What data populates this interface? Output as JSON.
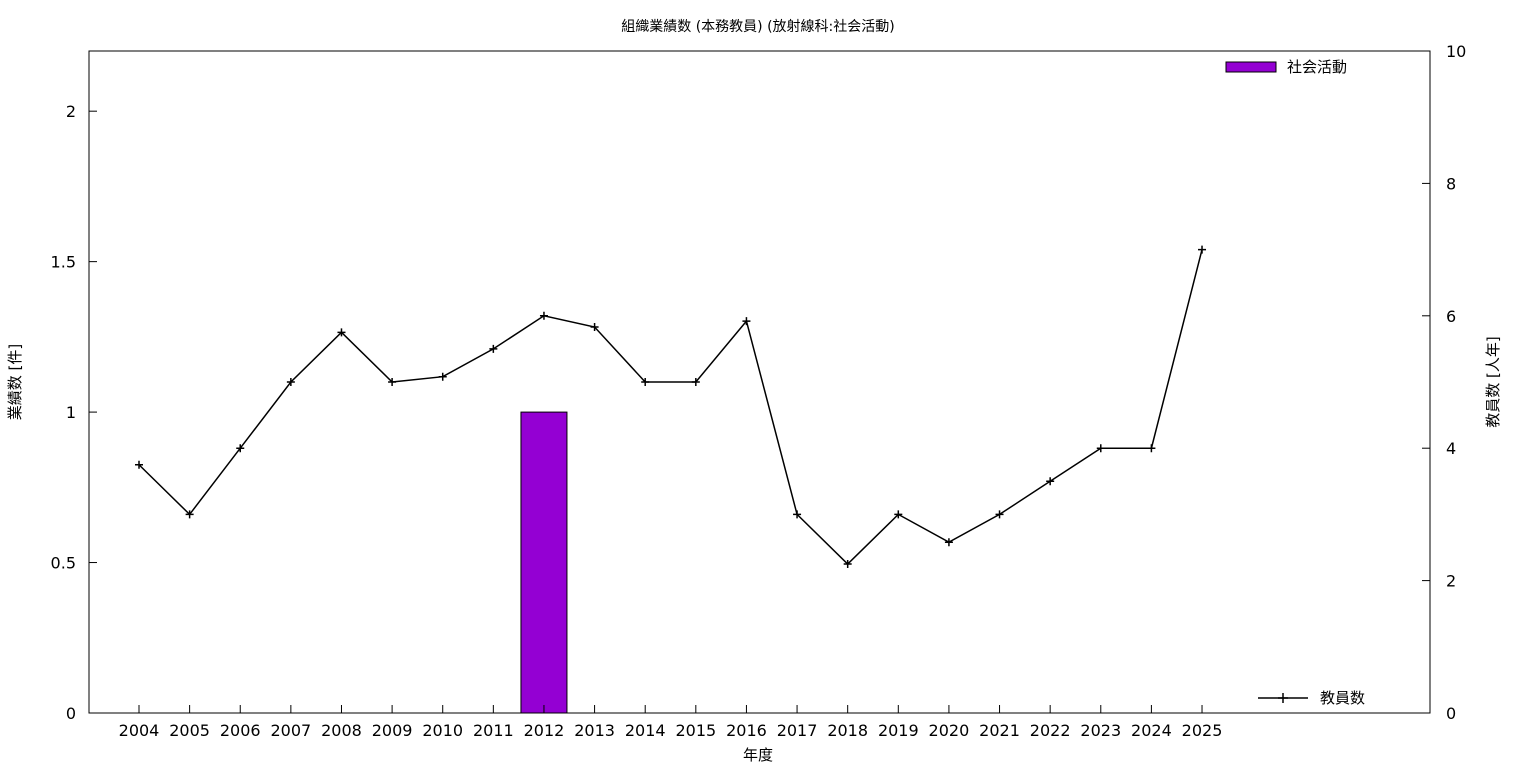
{
  "chart_data": {
    "type": "bar",
    "title": "組織業績数 (本務教員) (放射線科:社会活動)",
    "xlabel": "年度",
    "ylabel": "業績数 [件]",
    "y2label": "教員数 [人年]",
    "categories": [
      "2004",
      "2005",
      "2006",
      "2007",
      "2008",
      "2009",
      "2010",
      "2011",
      "2012",
      "2013",
      "2014",
      "2015",
      "2016",
      "2017",
      "2018",
      "2019",
      "2020",
      "2021",
      "2022",
      "2023",
      "2024",
      "2025"
    ],
    "ylim": [
      0,
      2.2
    ],
    "y_ticks": [
      "0",
      "0.5",
      "1",
      "1.5",
      "2"
    ],
    "y2lim": [
      0,
      10
    ],
    "y2_ticks": [
      "0",
      "2",
      "4",
      "6",
      "8",
      "10"
    ],
    "grid": false,
    "series": [
      {
        "name": "社会活動",
        "type": "bar",
        "axis": "left",
        "color": "#9400d3",
        "values": [
          0,
          0,
          0,
          0,
          0,
          0,
          0,
          0,
          1,
          0,
          0,
          0,
          0,
          0,
          0,
          0,
          0,
          0,
          0,
          0,
          0,
          0
        ]
      },
      {
        "name": "教員数",
        "type": "line",
        "axis": "right",
        "color": "#000000",
        "marker": "plus",
        "values": [
          3.75,
          3.0,
          4.0,
          5.0,
          5.75,
          5.0,
          5.08,
          5.5,
          6.0,
          5.83,
          5.0,
          5.0,
          5.92,
          3.0,
          2.25,
          3.0,
          2.58,
          3.0,
          3.5,
          4.0,
          4.0,
          7.0
        ]
      }
    ],
    "legend": [
      {
        "label": "社会活動",
        "position": "top-right"
      },
      {
        "label": "教員数",
        "position": "bottom-right"
      }
    ]
  }
}
